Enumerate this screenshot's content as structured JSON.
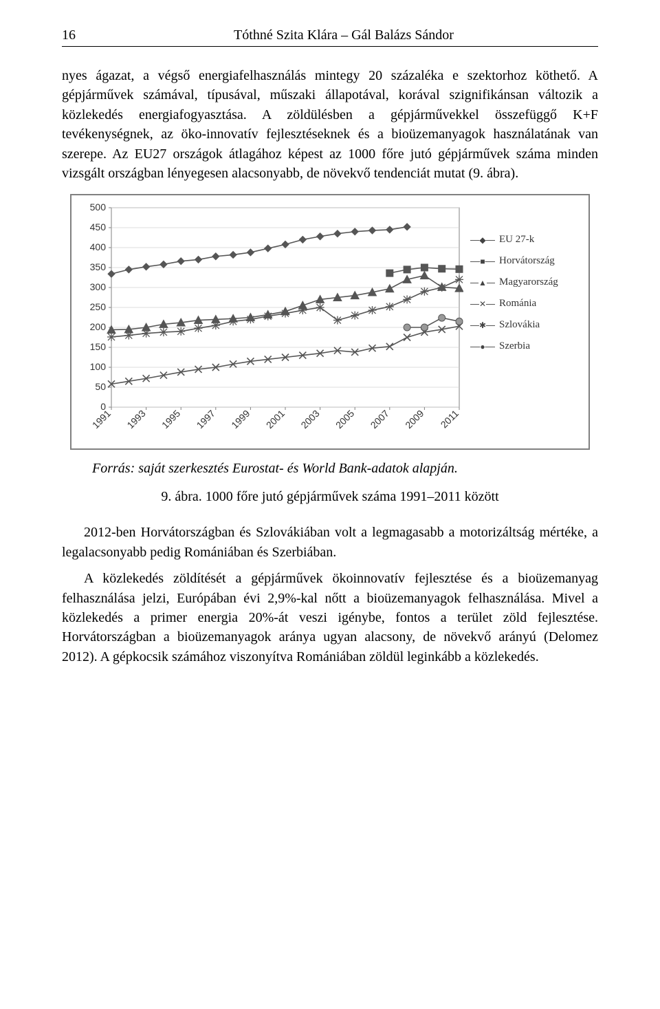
{
  "header": {
    "page_number": "16",
    "authors": "Tóthné Szita Klára – Gál Balázs Sándor"
  },
  "paragraphs": {
    "p1": "nyes ágazat, a végső energiafelhasználás mintegy 20 százaléka e szektorhoz köthető. A gépjárművek számával, típusával, műszaki állapotával, korával szignifikánsan változik a közlekedés energiafogyasztása. A zöldülésben a gépjárművekkel összefüggő K+F tevékenységnek, az öko-innovatív fejlesztéseknek és a bioüzemanyagok használatának van szerepe. Az EU27 országok átlagához képest az 1000 főre jutó gépjárművek száma minden vizsgált országban lényegesen alacsonyabb, de növekvő tendenciát mutat (9. ábra).",
    "source": "Forrás: saját szerkesztés Eurostat- és World Bank-adatok alapján.",
    "caption": "9. ábra. 1000 főre jutó gépjárművek száma 1991–2011 között",
    "p2": "2012-ben Horvátországban és Szlovákiában volt a legmagasabb a motorizáltság mértéke, a legalacsonyabb pedig Romániában és Szerbiában.",
    "p3": "A közlekedés zöldítését a gépjárművek ökoinnovatív fejlesztése és a bioüzemanyag felhasználása jelzi, Európában évi 2,9%-kal nőtt a bioüzemanyagok felhasználása. Mivel a közlekedés a primer energia 20%-át veszi igénybe, fontos a terület zöld fejlesztése. Horvátországban a bioüzemanyagok aránya ugyan alacsony, de növekvő arányú (Delomez 2012). A gépkocsik számához viszonyítva Romániában zöldül leginkább a közlekedés."
  },
  "chart": {
    "type": "line",
    "ylim": [
      0,
      500
    ],
    "ytick_step": 50,
    "yticks": [
      "0",
      "50",
      "100",
      "150",
      "200",
      "250",
      "300",
      "350",
      "400",
      "450",
      "500"
    ],
    "x_categories": [
      "1991",
      "1993",
      "1995",
      "1997",
      "1999",
      "2001",
      "2003",
      "2005",
      "2007",
      "2009",
      "2011"
    ],
    "x_years": [
      1991,
      1992,
      1993,
      1994,
      1995,
      1996,
      1997,
      1998,
      1999,
      2000,
      2001,
      2002,
      2003,
      2004,
      2005,
      2006,
      2007,
      2008,
      2009,
      2010,
      2011
    ],
    "grid_color": "#d0d0d0",
    "axis_color": "#808080",
    "tick_font": 14,
    "background_color": "#ffffff",
    "line_color": "#555555",
    "marker_size": 5,
    "series": [
      {
        "name": "EU 27-k",
        "marker": "diamond",
        "start": 1991,
        "values": [
          334,
          345,
          352,
          358,
          366,
          370,
          378,
          382,
          388,
          398,
          408,
          420,
          428,
          435,
          440,
          443,
          445,
          452
        ]
      },
      {
        "name": "Horvátország",
        "marker": "square",
        "start": 2007,
        "values": [
          336,
          345,
          350,
          347,
          346
        ]
      },
      {
        "name": "Magyarország",
        "marker": "triangle",
        "start": 1991,
        "values": [
          194,
          195,
          200,
          208,
          212,
          218,
          220,
          222,
          225,
          232,
          240,
          255,
          270,
          275,
          280,
          288,
          297,
          320,
          330,
          301,
          298
        ]
      },
      {
        "name": "Románia",
        "marker": "x",
        "start": 1991,
        "values": [
          58,
          65,
          72,
          80,
          88,
          95,
          100,
          108,
          115,
          120,
          125,
          130,
          135,
          142,
          138,
          148,
          152,
          175,
          188,
          195,
          203
        ]
      },
      {
        "name": "Szlovákia",
        "marker": "asterisk",
        "start": 1991,
        "values": [
          176,
          180,
          185,
          188,
          190,
          198,
          205,
          215,
          220,
          228,
          235,
          243,
          250,
          218,
          230,
          243,
          252,
          270,
          290,
          300,
          320
        ]
      },
      {
        "name": "Szerbia",
        "marker": "circle",
        "start": 2008,
        "values": [
          200,
          200,
          224,
          215
        ]
      }
    ],
    "legend": [
      {
        "label": "EU 27-k",
        "marker": "diamond"
      },
      {
        "label": "Horvátország",
        "marker": "square"
      },
      {
        "label": "Magyarország",
        "marker": "triangle"
      },
      {
        "label": "Románia",
        "marker": "x"
      },
      {
        "label": "Szlovákia",
        "marker": "asterisk"
      },
      {
        "label": "Szerbia",
        "marker": "circle"
      }
    ]
  }
}
